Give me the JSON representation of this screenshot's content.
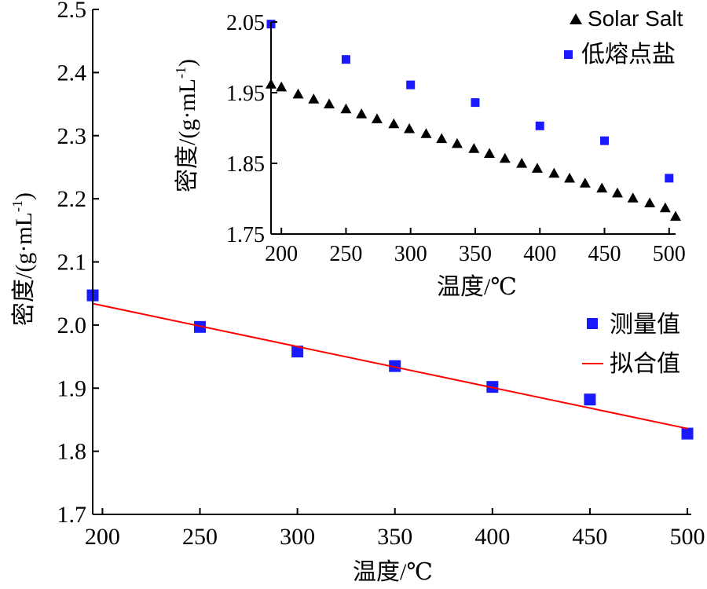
{
  "chart_data": [
    {
      "type": "scatter",
      "xlabel": "温度/℃",
      "ylabel_main": "密度/(g·mL",
      "ylabel_sup": "-1",
      "ylabel_close": ")",
      "xlim": [
        195,
        502
      ],
      "ylim": [
        1.7,
        2.5
      ],
      "xticks": [
        200,
        250,
        300,
        350,
        400,
        450,
        500
      ],
      "yticks": [
        1.7,
        1.8,
        1.9,
        2.0,
        2.1,
        2.2,
        2.3,
        2.4,
        2.5
      ],
      "ytick_labels": [
        "1.7",
        "1.8",
        "1.9",
        "2.0",
        "2.1",
        "2.2",
        "2.3",
        "2.4",
        "2.5"
      ],
      "series": [
        {
          "name": "测量值",
          "marker": "square",
          "color": "#1a1aff",
          "x": [
            195,
            250,
            300,
            350,
            400,
            450,
            500
          ],
          "y": [
            2.047,
            1.997,
            1.958,
            1.935,
            1.902,
            1.882,
            1.828
          ]
        },
        {
          "name": "拟合值",
          "marker": "line",
          "color": "#ff0000",
          "x": [
            195,
            500
          ],
          "y": [
            2.034,
            1.836
          ]
        }
      ],
      "legend_position": "right"
    },
    {
      "type": "scatter",
      "xlabel": "温度/℃",
      "ylabel_main": "密度/(g·mL",
      "ylabel_sup": "-1",
      "ylabel_close": ")",
      "xlim": [
        192,
        505
      ],
      "ylim": [
        1.75,
        2.05
      ],
      "xticks": [
        200,
        250,
        300,
        350,
        400,
        450,
        500
      ],
      "yticks": [
        1.75,
        1.85,
        1.95,
        2.05
      ],
      "ytick_labels": [
        "1.75",
        "1.85",
        "1.95",
        "2.05"
      ],
      "series": [
        {
          "name": "Solar Salt",
          "marker": "triangle",
          "color": "#000000",
          "x": [
            192,
            200,
            213,
            225,
            237,
            250,
            262,
            274,
            287,
            299,
            312,
            324,
            336,
            349,
            361,
            373,
            386,
            398,
            411,
            423,
            435,
            448,
            460,
            472,
            485,
            497,
            505
          ],
          "y": [
            1.962,
            1.958,
            1.948,
            1.941,
            1.934,
            1.927,
            1.92,
            1.913,
            1.906,
            1.899,
            1.892,
            1.885,
            1.878,
            1.871,
            1.864,
            1.857,
            1.85,
            1.843,
            1.836,
            1.829,
            1.822,
            1.815,
            1.808,
            1.801,
            1.794,
            1.787,
            1.775
          ]
        },
        {
          "name": "低熔点盐",
          "marker": "square",
          "color": "#1a1aff",
          "x": [
            192,
            250,
            300,
            350,
            400,
            450,
            500
          ],
          "y": [
            2.047,
            1.997,
            1.961,
            1.936,
            1.903,
            1.882,
            1.829
          ]
        }
      ],
      "legend_position": "top-right"
    }
  ]
}
